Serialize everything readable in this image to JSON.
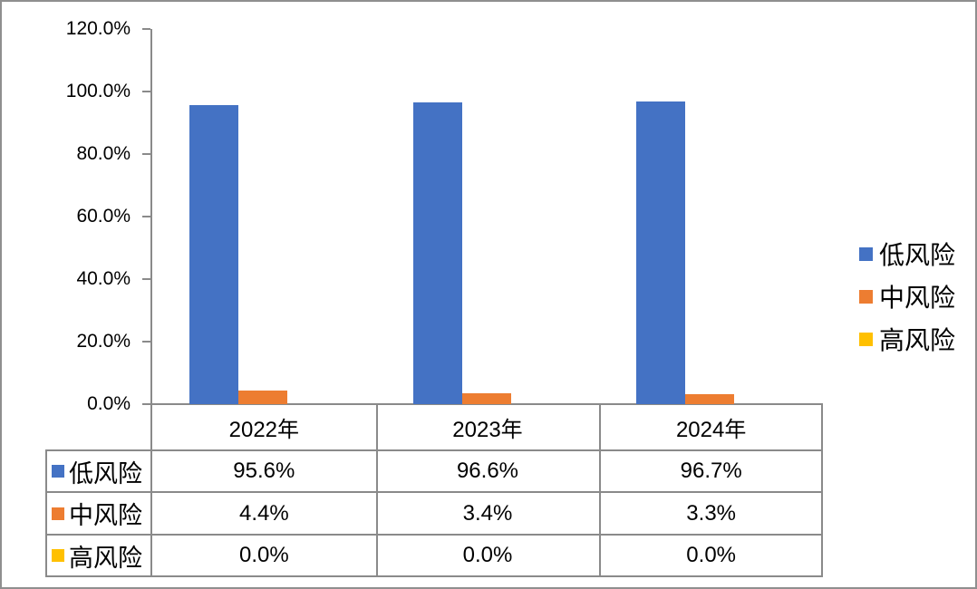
{
  "chart_data": {
    "type": "bar",
    "title": "",
    "categories": [
      "2022年",
      "2023年",
      "2024年"
    ],
    "category_slugs": [
      "2022",
      "2023",
      "2024"
    ],
    "series": [
      {
        "name": "低风险",
        "slug": "low-risk",
        "color": "#4472C4",
        "values": [
          95.6,
          96.6,
          96.7
        ]
      },
      {
        "name": "中风险",
        "slug": "mid-risk",
        "color": "#ED7D31",
        "values": [
          4.4,
          3.4,
          3.3
        ]
      },
      {
        "name": "高风险",
        "slug": "high-risk",
        "color": "#FFC000",
        "values": [
          0.0,
          0.0,
          0.0
        ]
      }
    ],
    "table_values": [
      [
        "95.6%",
        "96.6%",
        "96.7%"
      ],
      [
        "4.4%",
        "3.4%",
        "3.3%"
      ],
      [
        "0.0%",
        "0.0%",
        "0.0%"
      ]
    ],
    "y_tick_labels": [
      "120.0%",
      "100.0%",
      "80.0%",
      "60.0%",
      "40.0%",
      "20.0%",
      "0.0%"
    ],
    "ylim": [
      0,
      120
    ],
    "grid": false,
    "legend_position": "right",
    "legend_labels": [
      "低风险",
      "中风险",
      "高风险"
    ],
    "data_table_shown": true
  },
  "colors": {
    "series_low": "#4472C4",
    "series_mid": "#ED7D31",
    "series_high": "#FFC000",
    "axis_line": "#8a8a8a",
    "text": "#000000",
    "background": "#FFFFFF"
  }
}
